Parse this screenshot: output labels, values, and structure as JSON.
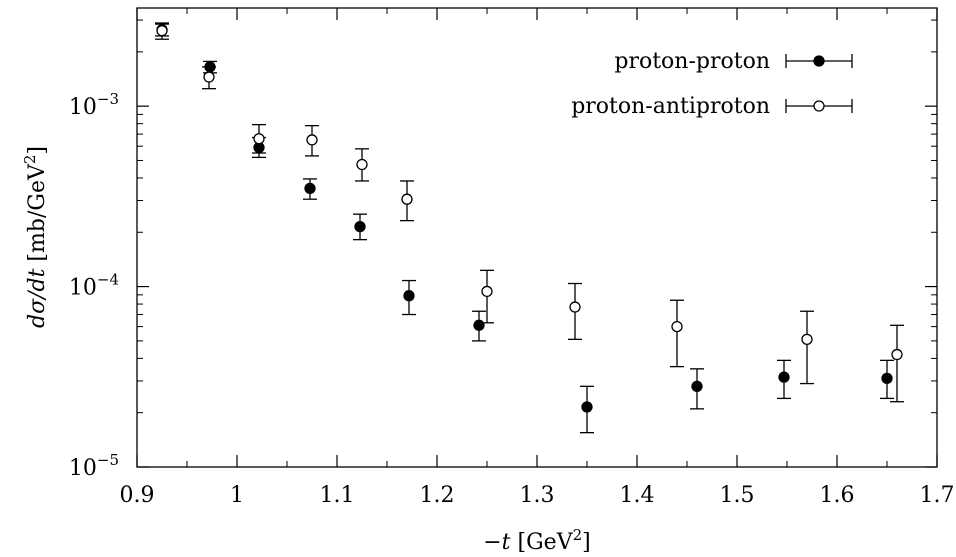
{
  "chart_data": {
    "type": "scatter",
    "xlabel": "−t [GeV²]",
    "ylabel": "dσ/dt [mb/GeV²]",
    "xlim": [
      0.9,
      1.7
    ],
    "ylim": [
      1e-05,
      0.0035
    ],
    "yscale": "log",
    "grid": false,
    "legend_position": "top-right",
    "x_ticks": [
      0.9,
      1.0,
      1.1,
      1.2,
      1.3,
      1.4,
      1.5,
      1.6,
      1.7
    ],
    "x_tick_labels": [
      "0.9",
      "1",
      "1.1",
      "1.2",
      "1.3",
      "1.4",
      "1.5",
      "1.6",
      "1.7"
    ],
    "y_ticks": [
      {
        "value": 1e-05,
        "base": "10",
        "exp": "−5"
      },
      {
        "value": 0.0001,
        "base": "10",
        "exp": "−4"
      },
      {
        "value": 0.001,
        "base": "10",
        "exp": "−3"
      }
    ],
    "series": [
      {
        "name": "proton-proton",
        "marker": "filled-circle",
        "color": "#000000",
        "points": [
          {
            "x": 0.925,
            "y": 0.00265,
            "lo": 0.00245,
            "hi": 0.00285
          },
          {
            "x": 0.973,
            "y": 0.00165,
            "lo": 0.00153,
            "hi": 0.00177
          },
          {
            "x": 1.022,
            "y": 0.00059,
            "lo": 0.00052,
            "hi": 0.00067
          },
          {
            "x": 1.073,
            "y": 0.00035,
            "lo": 0.000305,
            "hi": 0.000395
          },
          {
            "x": 1.123,
            "y": 0.000215,
            "lo": 0.000182,
            "hi": 0.000252
          },
          {
            "x": 1.172,
            "y": 8.9e-05,
            "lo": 7e-05,
            "hi": 0.000108
          },
          {
            "x": 1.242,
            "y": 6.1e-05,
            "lo": 5e-05,
            "hi": 7.3e-05
          },
          {
            "x": 1.35,
            "y": 2.15e-05,
            "lo": 1.55e-05,
            "hi": 2.8e-05
          },
          {
            "x": 1.46,
            "y": 2.8e-05,
            "lo": 2.1e-05,
            "hi": 3.5e-05
          },
          {
            "x": 1.547,
            "y": 3.15e-05,
            "lo": 2.4e-05,
            "hi": 3.9e-05
          },
          {
            "x": 1.65,
            "y": 3.1e-05,
            "lo": 2.4e-05,
            "hi": 3.9e-05
          }
        ]
      },
      {
        "name": "proton-antiproton",
        "marker": "open-circle",
        "color": "#000000",
        "points": [
          {
            "x": 0.925,
            "y": 0.00262,
            "lo": 0.00235,
            "hi": 0.00289
          },
          {
            "x": 0.972,
            "y": 0.00145,
            "lo": 0.00125,
            "hi": 0.00165
          },
          {
            "x": 1.022,
            "y": 0.00066,
            "lo": 0.00055,
            "hi": 0.00079
          },
          {
            "x": 1.075,
            "y": 0.00065,
            "lo": 0.00053,
            "hi": 0.00078
          },
          {
            "x": 1.125,
            "y": 0.000475,
            "lo": 0.000385,
            "hi": 0.00058
          },
          {
            "x": 1.17,
            "y": 0.000305,
            "lo": 0.000232,
            "hi": 0.000385
          },
          {
            "x": 1.25,
            "y": 9.4e-05,
            "lo": 6.3e-05,
            "hi": 0.000123
          },
          {
            "x": 1.338,
            "y": 7.7e-05,
            "lo": 5.1e-05,
            "hi": 0.000104
          },
          {
            "x": 1.44,
            "y": 6e-05,
            "lo": 3.6e-05,
            "hi": 8.4e-05
          },
          {
            "x": 1.57,
            "y": 5.1e-05,
            "lo": 2.9e-05,
            "hi": 7.3e-05
          },
          {
            "x": 1.66,
            "y": 4.2e-05,
            "lo": 2.3e-05,
            "hi": 6.1e-05
          }
        ]
      }
    ]
  }
}
